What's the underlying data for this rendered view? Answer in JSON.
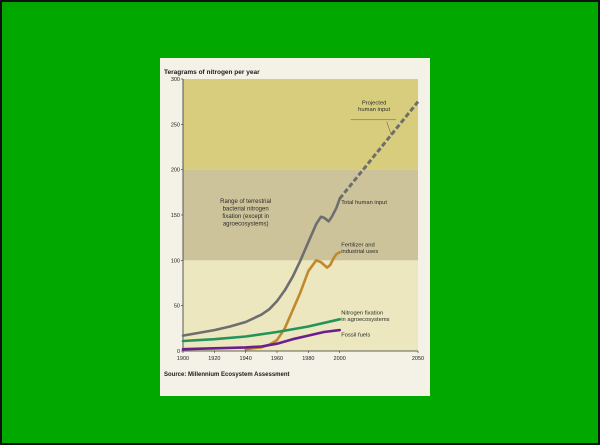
{
  "colors": {
    "slide_background": "#00a800",
    "figure_background": "#f4f1e6",
    "band_lower": "#ece7bf",
    "band_middle": "#cdc39a",
    "band_upper": "#d8cd7c",
    "total_human_input": "#6e6e6e",
    "fertilizer": "#c08a2c",
    "fixation_agro": "#23955a",
    "fossil_fuels": "#6a1f8c"
  },
  "chart_data": {
    "type": "line",
    "title": "Teragrams of nitrogen per year",
    "source": "Source: Millennium Ecosystem Assessment",
    "xlim": [
      1900,
      2050
    ],
    "ylim": [
      0,
      300
    ],
    "x_ticks": [
      "1900",
      "1920",
      "1940",
      "1960",
      "1980",
      "2000",
      "2050"
    ],
    "y_ticks": [
      "0",
      "50",
      "100",
      "150",
      "200",
      "250",
      "300"
    ],
    "grid": false,
    "shaded_ranges": [
      {
        "from": 0,
        "to": 100,
        "color_key": "band_lower"
      },
      {
        "from": 100,
        "to": 200,
        "color_key": "band_middle"
      },
      {
        "from": 200,
        "to": 300,
        "color_key": "band_upper"
      }
    ],
    "range_label": "Range of terrestrial bacterial nitrogen fixation (except in agroecosystems)",
    "series": [
      {
        "name": "Total human input",
        "color_key": "total_human_input",
        "x": [
          1900,
          1910,
          1920,
          1930,
          1940,
          1950,
          1955,
          1960,
          1965,
          1970,
          1975,
          1980,
          1985,
          1988,
          1990,
          1993,
          1995,
          1998,
          2000
        ],
        "y": [
          17,
          20,
          23,
          27,
          32,
          40,
          46,
          55,
          67,
          82,
          100,
          120,
          140,
          148,
          147,
          143,
          148,
          158,
          168
        ]
      },
      {
        "name": "Projected human input",
        "color_key": "total_human_input",
        "dashed": true,
        "x": [
          2000,
          2050
        ],
        "y": [
          168,
          275
        ]
      },
      {
        "name": "Fertilizer and industrial uses",
        "color_key": "fertilizer",
        "x": [
          1940,
          1950,
          1955,
          1960,
          1965,
          1970,
          1975,
          1980,
          1985,
          1988,
          1990,
          1992,
          1994,
          1996,
          1998,
          2000
        ],
        "y": [
          2,
          4,
          7,
          12,
          25,
          45,
          65,
          88,
          100,
          98,
          95,
          92,
          95,
          102,
          107,
          109
        ]
      },
      {
        "name": "Nitrogen fixation in agroecosystems",
        "color_key": "fixation_agro",
        "x": [
          1900,
          1920,
          1940,
          1960,
          1980,
          2000
        ],
        "y": [
          11,
          13,
          16,
          21,
          27,
          35
        ]
      },
      {
        "name": "Fossil fuels",
        "color_key": "fossil_fuels",
        "x": [
          1900,
          1920,
          1940,
          1950,
          1960,
          1970,
          1980,
          1990,
          2000
        ],
        "y": [
          2,
          3,
          4,
          5,
          8,
          13,
          17,
          21,
          23
        ]
      }
    ],
    "annotations": [
      {
        "name": "projected-label",
        "lines": [
          "Projected",
          "human input"
        ]
      },
      {
        "name": "total-label",
        "lines": [
          "Total human input"
        ]
      },
      {
        "name": "fertilizer-label",
        "lines": [
          "Fertilizer and",
          "industrial uses"
        ]
      },
      {
        "name": "fixation-label",
        "lines": [
          "Nitrogen fixation",
          "in agroecosystems"
        ]
      },
      {
        "name": "fossil-label",
        "lines": [
          "Fossil fuels"
        ]
      }
    ]
  }
}
